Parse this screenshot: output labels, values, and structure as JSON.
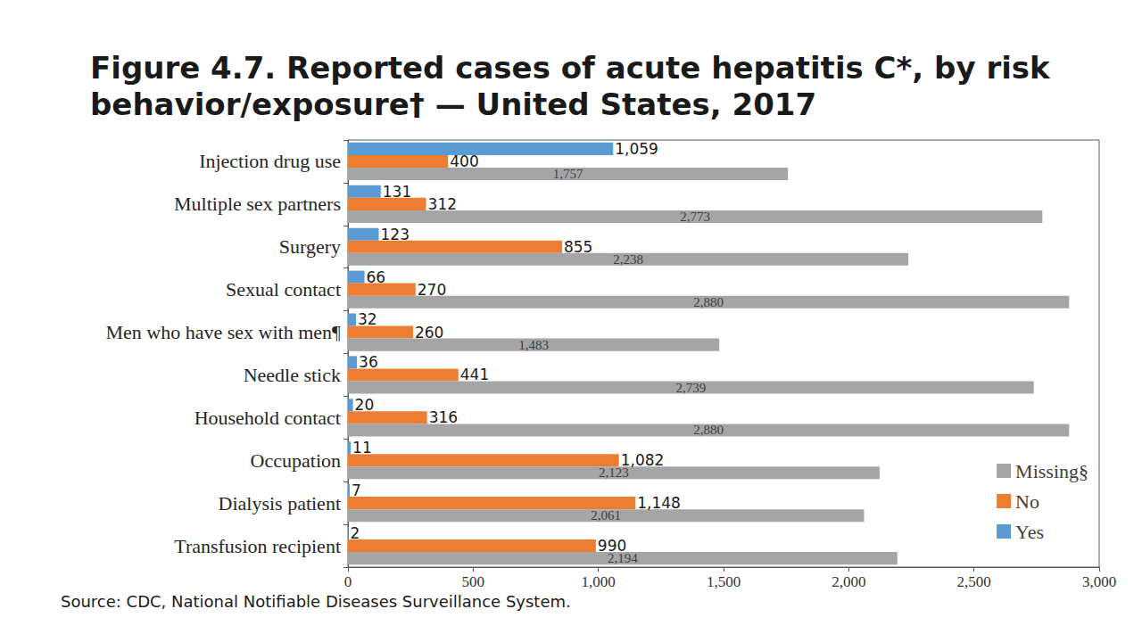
{
  "chart_data": {
    "type": "bar",
    "title": "Figure 4.7. Reported cases of acute hepatitis C*, by risk behavior/exposure† — United States, 2017",
    "annotations": [
      "Source: CDC, National Notifiable Diseases Surveillance System."
    ],
    "orientation": "horizontal",
    "categories": [
      "Injection drug use",
      "Multiple sex partners",
      "Surgery",
      "Sexual contact",
      "Men who have sex with men¶",
      "Needle stick",
      "Household contact",
      "Occupation",
      "Dialysis patient",
      "Transfusion recipient"
    ],
    "series": [
      {
        "name": "Yes",
        "color": "#5b9bd5",
        "values": [
          1059,
          131,
          123,
          66,
          32,
          36,
          20,
          11,
          7,
          2
        ],
        "value_labels": [
          "1,059",
          "131",
          "123",
          "66",
          "32",
          "36",
          "20",
          "11",
          "7",
          "2"
        ]
      },
      {
        "name": "No",
        "color": "#ed7d31",
        "values": [
          400,
          312,
          855,
          270,
          260,
          441,
          316,
          1082,
          1148,
          990
        ],
        "value_labels": [
          "400",
          "312",
          "855",
          "270",
          "260",
          "441",
          "316",
          "1,082",
          "1,148",
          "990"
        ]
      },
      {
        "name": "Missing§",
        "color": "#a5a5a5",
        "values": [
          1757,
          2773,
          2238,
          2880,
          1483,
          2739,
          2880,
          2123,
          2061,
          2194
        ],
        "value_labels": [
          "1,757",
          "2,773",
          "2,238",
          "2,880",
          "1,483",
          "2,739",
          "2,880",
          "2,123",
          "2,061",
          "2,194"
        ]
      }
    ],
    "xlim": [
      0,
      3000
    ],
    "xticks": [
      0,
      500,
      {
        "value": 1000,
        "label": "1,000"
      },
      {
        "value": 1500,
        "label": "1,500"
      },
      {
        "value": 2000,
        "label": "2,000"
      },
      {
        "value": 2500,
        "label": "2,500"
      },
      {
        "value": 3000,
        "label": "3,000"
      }
    ],
    "grid": false,
    "legend": "lower right",
    "data_labels": true
  }
}
